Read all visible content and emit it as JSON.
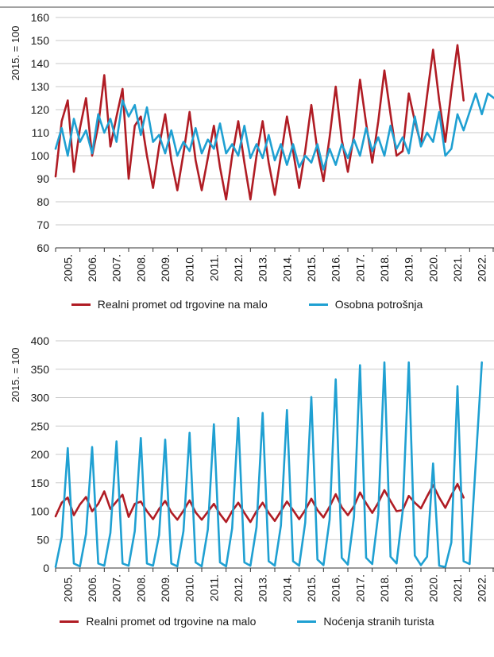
{
  "chart_data": [
    {
      "type": "line",
      "ylabel": "2015. = 100",
      "ylim": [
        60,
        160
      ],
      "yticks": [
        60,
        70,
        80,
        90,
        100,
        110,
        120,
        130,
        140,
        150,
        160
      ],
      "xticklabels": [
        "2005.",
        "2006.",
        "2007.",
        "2008.",
        "2009.",
        "2010.",
        "2011.",
        "2012.",
        "2013.",
        "2014.",
        "2015.",
        "2016.",
        "2017.",
        "2018.",
        "2019.",
        "2020.",
        "2021.",
        "2022."
      ],
      "x_unit": "quarter, starting Q1 2005",
      "grid": "horizontal",
      "legend_position": "bottom",
      "series": [
        {
          "name": "Realni promet od trgovine na malo",
          "color": "#b01c24",
          "values": [
            91,
            115,
            124,
            93,
            112,
            125,
            100,
            113,
            135,
            104,
            117,
            129,
            90,
            113,
            117,
            100,
            86,
            104,
            118,
            98,
            85,
            101,
            119,
            98,
            85,
            99,
            113,
            95,
            81,
            100,
            115,
            97,
            81,
            100,
            115,
            97,
            83,
            100,
            117,
            102,
            86,
            102,
            122,
            102,
            89,
            108,
            130,
            107,
            93,
            109,
            133,
            114,
            97,
            115,
            137,
            118,
            100,
            102,
            127,
            115,
            105,
            126,
            146,
            124,
            106,
            128,
            148,
            124
          ]
        },
        {
          "name": "Osobna potrošnja",
          "color": "#1fa0d2",
          "values": [
            103,
            112,
            100,
            116,
            106,
            111,
            101,
            118,
            110,
            116,
            106,
            124,
            117,
            122,
            109,
            121,
            106,
            109,
            101,
            111,
            100,
            106,
            102,
            112,
            101,
            107,
            103,
            114,
            101,
            105,
            100,
            113,
            99,
            105,
            99,
            109,
            98,
            105,
            96,
            105,
            95,
            100,
            97,
            105,
            94,
            103,
            96,
            105,
            99,
            107,
            100,
            112,
            102,
            108,
            100,
            113,
            103,
            108,
            101,
            117,
            104,
            110,
            106,
            119,
            100,
            103,
            118,
            111,
            119,
            127,
            118,
            127,
            125
          ]
        }
      ]
    },
    {
      "type": "line",
      "ylabel": "2015. = 100",
      "ylim": [
        0,
        400
      ],
      "yticks": [
        0,
        50,
        100,
        150,
        200,
        250,
        300,
        350,
        400
      ],
      "xticklabels": [
        "2005.",
        "2006.",
        "2007.",
        "2008.",
        "2009.",
        "2010.",
        "2011.",
        "2012.",
        "2013.",
        "2014.",
        "2015.",
        "2016.",
        "2017.",
        "2018.",
        "2019.",
        "2020.",
        "2021.",
        "2022."
      ],
      "x_unit": "quarter, starting Q1 2005",
      "grid": "horizontal",
      "legend_position": "bottom",
      "series": [
        {
          "name": "Realni promet od trgovine na malo",
          "color": "#b01c24",
          "values": [
            91,
            115,
            124,
            93,
            112,
            125,
            100,
            113,
            135,
            104,
            117,
            129,
            90,
            113,
            117,
            100,
            86,
            104,
            118,
            98,
            85,
            101,
            119,
            98,
            85,
            99,
            113,
            95,
            81,
            100,
            115,
            97,
            81,
            100,
            115,
            97,
            83,
            100,
            117,
            102,
            86,
            102,
            122,
            102,
            89,
            108,
            130,
            107,
            93,
            109,
            133,
            114,
            97,
            115,
            137,
            118,
            100,
            102,
            127,
            115,
            105,
            126,
            146,
            124,
            106,
            128,
            148,
            124
          ]
        },
        {
          "name": "Noćenja stranih turista",
          "color": "#1fa0d2",
          "values": [
            2,
            55,
            211,
            8,
            3,
            60,
            213,
            8,
            4,
            62,
            223,
            8,
            4,
            65,
            229,
            8,
            4,
            58,
            226,
            8,
            3,
            65,
            238,
            10,
            3,
            68,
            253,
            10,
            3,
            70,
            264,
            10,
            4,
            72,
            273,
            12,
            4,
            75,
            278,
            12,
            4,
            80,
            301,
            15,
            5,
            85,
            332,
            18,
            6,
            90,
            357,
            18,
            7,
            95,
            362,
            20,
            8,
            100,
            362,
            22,
            5,
            20,
            184,
            4,
            2,
            45,
            320,
            12,
            7,
            185,
            362
          ]
        }
      ]
    }
  ]
}
